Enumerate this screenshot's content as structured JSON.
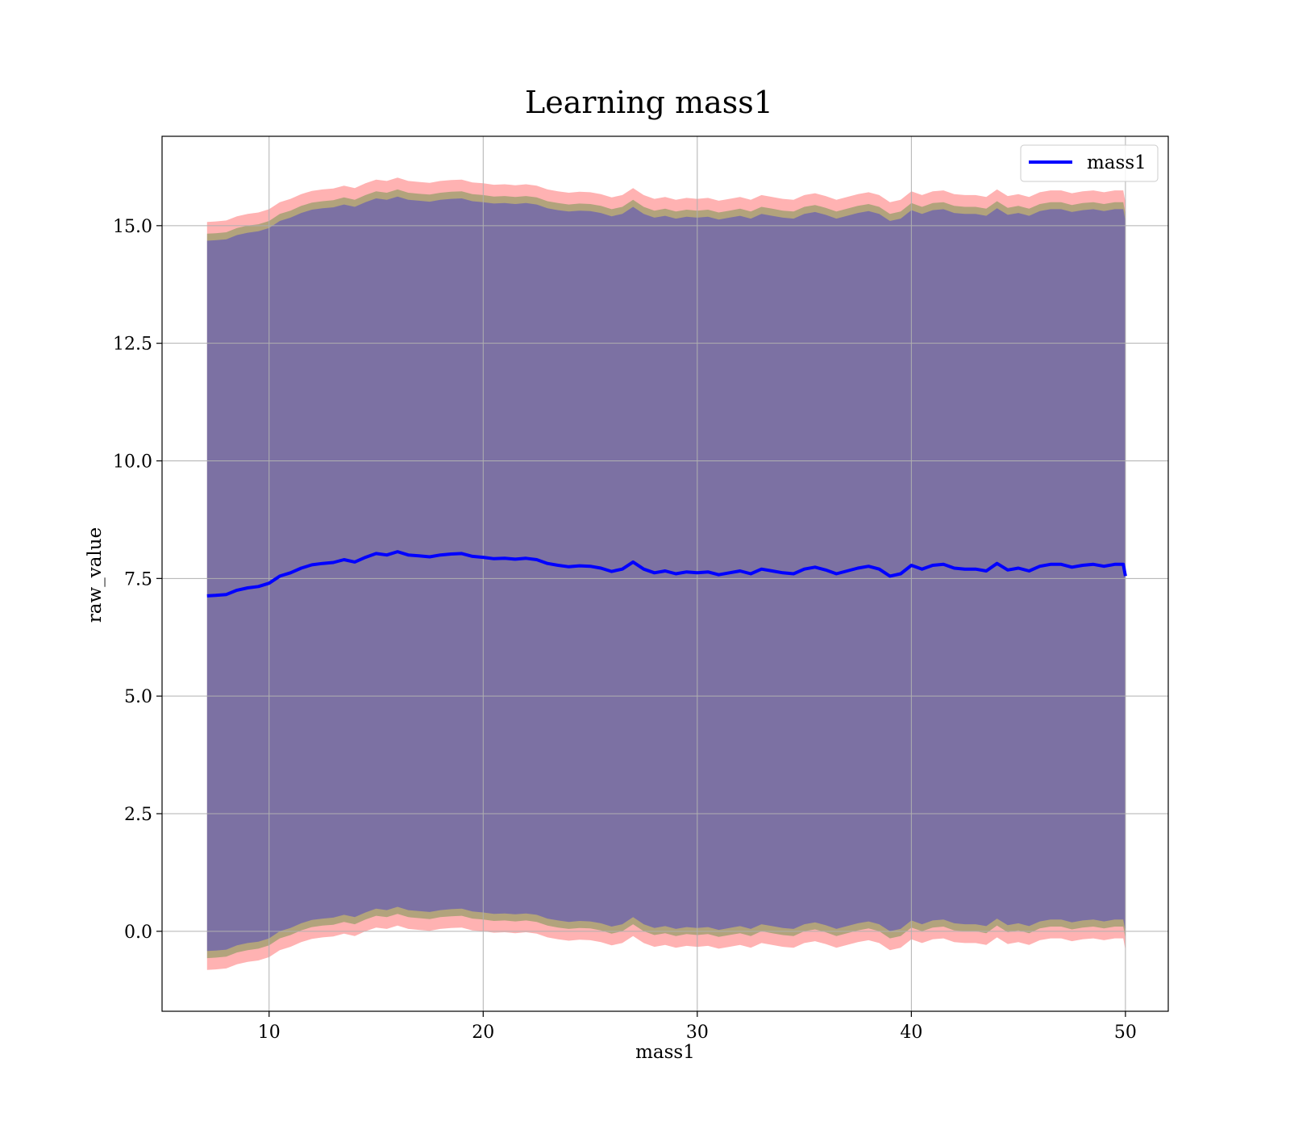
{
  "chart_data": {
    "type": "line",
    "title": "Learning mass1",
    "xlabel": "mass1",
    "ylabel": "raw_value",
    "xlim": [
      5,
      52
    ],
    "ylim": [
      -1.7,
      16.9
    ],
    "xticks": [
      10,
      20,
      30,
      40,
      50
    ],
    "xtick_labels": [
      "10",
      "20",
      "30",
      "40",
      "50"
    ],
    "yticks": [
      0.0,
      2.5,
      5.0,
      7.5,
      10.0,
      12.5,
      15.0
    ],
    "ytick_labels": [
      "0.0",
      "2.5",
      "5.0",
      "7.5",
      "10.0",
      "12.5",
      "15.0"
    ],
    "grid": true,
    "legend_position": "top-right",
    "series": [
      {
        "name": "mass1",
        "color": "#0000ff",
        "x": [
          7.1,
          7.5,
          8.0,
          8.5,
          9.0,
          9.5,
          10.0,
          10.5,
          11.0,
          11.5,
          12.0,
          12.5,
          13.0,
          13.5,
          14.0,
          14.5,
          15.0,
          15.5,
          16.0,
          16.5,
          17.0,
          17.5,
          18.0,
          18.5,
          19.0,
          19.5,
          20.0,
          20.5,
          21.0,
          21.5,
          22.0,
          22.5,
          23.0,
          23.5,
          24.0,
          24.5,
          25.0,
          25.5,
          26.0,
          26.5,
          27.0,
          27.5,
          28.0,
          28.5,
          29.0,
          29.5,
          30.0,
          30.5,
          31.0,
          31.5,
          32.0,
          32.5,
          33.0,
          33.5,
          34.0,
          34.5,
          35.0,
          35.5,
          36.0,
          36.5,
          37.0,
          37.5,
          38.0,
          38.5,
          39.0,
          39.5,
          40.0,
          40.5,
          41.0,
          41.5,
          42.0,
          42.5,
          43.0,
          43.5,
          44.0,
          44.5,
          45.0,
          45.5,
          46.0,
          46.5,
          47.0,
          47.5,
          48.0,
          48.5,
          49.0,
          49.5,
          49.9,
          50.0
        ],
        "y": [
          7.13,
          7.14,
          7.16,
          7.25,
          7.3,
          7.33,
          7.4,
          7.55,
          7.62,
          7.72,
          7.79,
          7.82,
          7.84,
          7.9,
          7.85,
          7.95,
          8.03,
          8.0,
          8.07,
          8.0,
          7.98,
          7.96,
          8.0,
          8.02,
          8.03,
          7.97,
          7.95,
          7.92,
          7.93,
          7.91,
          7.93,
          7.9,
          7.82,
          7.78,
          7.75,
          7.77,
          7.76,
          7.72,
          7.65,
          7.7,
          7.85,
          7.7,
          7.62,
          7.66,
          7.6,
          7.64,
          7.62,
          7.64,
          7.58,
          7.62,
          7.66,
          7.6,
          7.7,
          7.66,
          7.62,
          7.6,
          7.7,
          7.74,
          7.68,
          7.6,
          7.66,
          7.72,
          7.76,
          7.7,
          7.55,
          7.6,
          7.78,
          7.7,
          7.78,
          7.8,
          7.72,
          7.7,
          7.7,
          7.66,
          7.82,
          7.68,
          7.72,
          7.66,
          7.76,
          7.8,
          7.8,
          7.74,
          7.78,
          7.8,
          7.76,
          7.8,
          7.8,
          7.55
        ]
      }
    ],
    "bands": [
      {
        "color": "#ff0000",
        "opacity": 0.3,
        "half_width": 7.95
      },
      {
        "color": "#008000",
        "opacity": 0.3,
        "half_width": 7.7
      },
      {
        "color": "#0000ff",
        "opacity": 0.3,
        "half_width": 7.55
      }
    ]
  }
}
